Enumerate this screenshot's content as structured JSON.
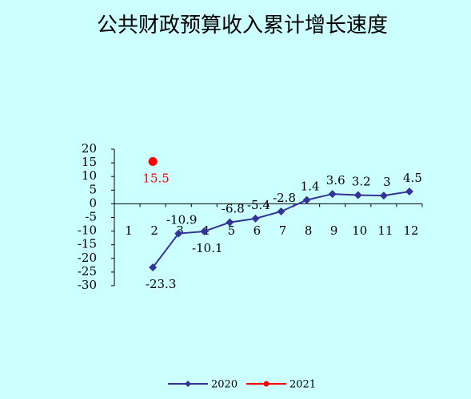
{
  "chart_data": {
    "type": "line",
    "title": "公共财政预算收入累计增长速度",
    "categories": [
      "1",
      "2",
      "3",
      "4",
      "5",
      "6",
      "7",
      "8",
      "9",
      "10",
      "11",
      "12"
    ],
    "series": [
      {
        "name": "2020",
        "color": "#333399",
        "marker": "diamond",
        "values": [
          null,
          -23.3,
          -10.9,
          -10.1,
          -6.8,
          -5.4,
          -2.8,
          1.4,
          3.6,
          3.2,
          3,
          4.5
        ]
      },
      {
        "name": "2021",
        "color": "#ff0000",
        "marker": "circle",
        "values": [
          null,
          15.5,
          null,
          null,
          null,
          null,
          null,
          null,
          null,
          null,
          null,
          null
        ]
      }
    ],
    "ylim": [
      -30,
      20
    ],
    "yticks": [
      -30,
      -25,
      -20,
      -15,
      -10,
      -5,
      0,
      5,
      10,
      15,
      20
    ],
    "legend": "bottom"
  }
}
